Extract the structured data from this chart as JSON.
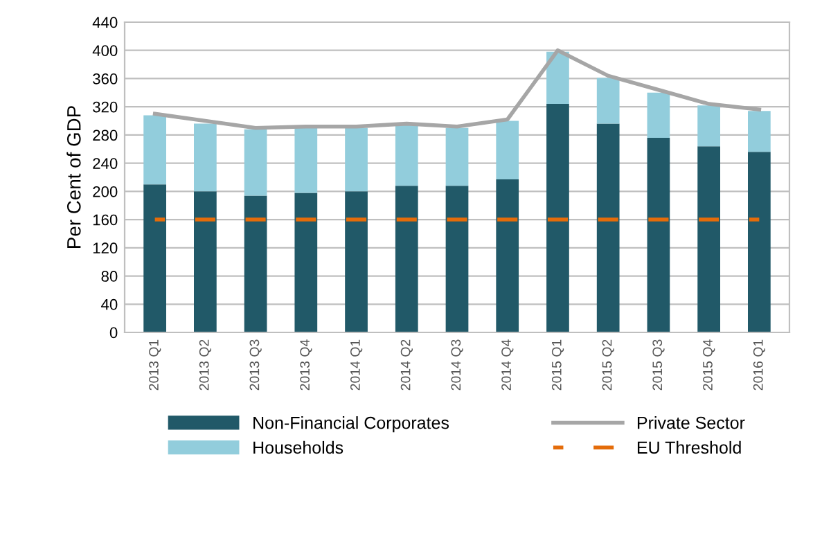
{
  "chart_data": {
    "type": "bar",
    "stacked": true,
    "ylabel": "Per Cent of GDP",
    "categories": [
      "2013 Q1",
      "2013 Q2",
      "2013 Q3",
      "2013 Q4",
      "2014 Q1",
      "2014 Q2",
      "2014 Q3",
      "2014 Q4",
      "2015 Q1",
      "2015 Q2",
      "2015 Q3",
      "2015 Q4",
      "2016 Q1"
    ],
    "series": [
      {
        "name": "Non-Financial Corporates",
        "color": "#215968",
        "values": [
          210,
          200,
          194,
          198,
          200,
          208,
          208,
          217,
          324,
          296,
          276,
          264,
          256
        ]
      },
      {
        "name": "Households",
        "color": "#92cddc",
        "values": [
          98,
          96,
          94,
          92,
          90,
          86,
          82,
          83,
          74,
          65,
          64,
          58,
          58
        ]
      },
      {
        "name": "Private Sector",
        "type": "line",
        "color": "#a6a6a6",
        "line_style": "solid",
        "values": [
          310,
          300,
          290,
          292,
          292,
          296,
          292,
          302,
          400,
          364,
          344,
          324,
          316
        ]
      },
      {
        "name": "EU Threshold",
        "type": "line",
        "color": "#e46c0a",
        "line_style": "dashed",
        "values": [
          160,
          160,
          160,
          160,
          160,
          160,
          160,
          160,
          160,
          160,
          160,
          160,
          160
        ]
      }
    ],
    "ylim": [
      0,
      440
    ],
    "yticks": [
      0,
      40,
      80,
      120,
      160,
      200,
      240,
      280,
      320,
      360,
      400,
      440
    ],
    "grid": "y",
    "legend": "bottom"
  }
}
